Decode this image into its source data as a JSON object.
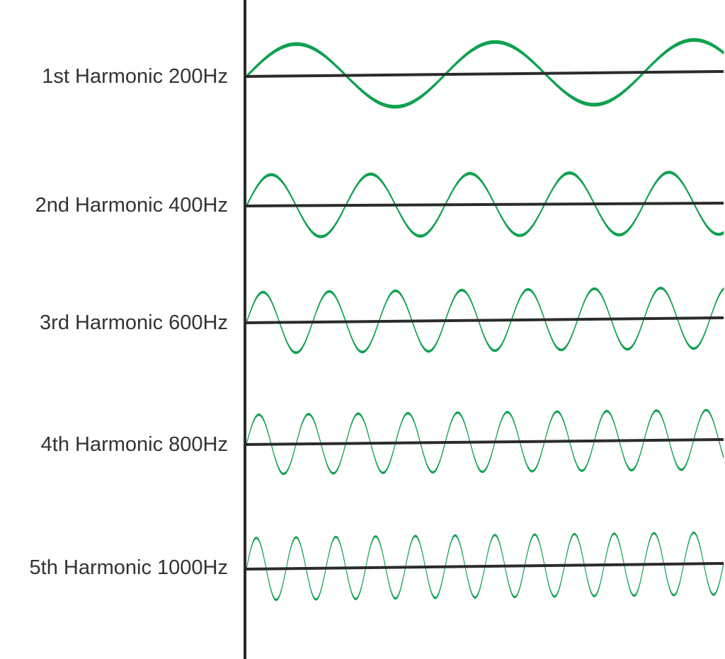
{
  "colors": {
    "wave": "#10a14f",
    "axis": "#2b2b2b",
    "label": "#333333",
    "background": "#ffffff"
  },
  "harmonics": [
    {
      "label": "1st Harmonic 200Hz",
      "frequency_hz": 200,
      "cycles_shown": 2.4
    },
    {
      "label": "2nd Harmonic 400Hz",
      "frequency_hz": 400,
      "cycles_shown": 4.8
    },
    {
      "label": "3rd Harmonic 600Hz",
      "frequency_hz": 600,
      "cycles_shown": 7.2
    },
    {
      "label": "4th Harmonic 800Hz",
      "frequency_hz": 800,
      "cycles_shown": 9.6
    },
    {
      "label": "5th Harmonic 1000Hz",
      "frequency_hz": 1000,
      "cycles_shown": 12.0
    }
  ]
}
